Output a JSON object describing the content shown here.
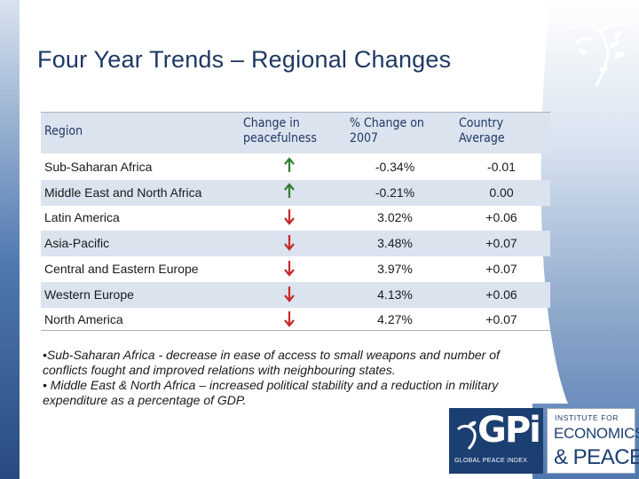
{
  "slide": {
    "title": "Four Year Trends – Regional Changes",
    "footer_url": "www.economicsandpeace.org"
  },
  "table": {
    "headers": {
      "region": "Region",
      "change": "Change in peacefulness",
      "pct": "% Change on 2007",
      "avg": "Country Average"
    },
    "rows": [
      {
        "region": "Sub-Saharan Africa",
        "trend": "up",
        "pct": "-0.34%",
        "avg": "-0.01"
      },
      {
        "region": "Middle East and North Africa",
        "trend": "up",
        "pct": "-0.21%",
        "avg": "0.00"
      },
      {
        "region": "Latin America",
        "trend": "down",
        "pct": "3.02%",
        "avg": "+0.06"
      },
      {
        "region": "Asia-Pacific",
        "trend": "down",
        "pct": "3.48%",
        "avg": "+0.07"
      },
      {
        "region": "Central and Eastern Europe",
        "trend": "down",
        "pct": "3.97%",
        "avg": "+0.07"
      },
      {
        "region": "Western Europe",
        "trend": "down",
        "pct": "4.13%",
        "avg": "+0.06"
      },
      {
        "region": "North America",
        "trend": "down",
        "pct": "4.27%",
        "avg": "+0.07"
      }
    ],
    "arrow_colors": {
      "up": "#2e7d32",
      "down": "#c62828"
    }
  },
  "notes": [
    "•Sub-Saharan Africa - decrease in ease of access to small weapons and number of conflicts fought and improved relations with neighbouring states.",
    "• Middle East & North Africa – increased political stability and a reduction in military expenditure as a percentage of GDP."
  ],
  "logos": {
    "gpi": {
      "text": "GPi",
      "subtitle": "GLOBAL PEACE INDEX"
    },
    "iep": {
      "line1": "INSTITUTE FOR",
      "line2": "ECONOMICS",
      "line3": "& PEACE"
    }
  }
}
